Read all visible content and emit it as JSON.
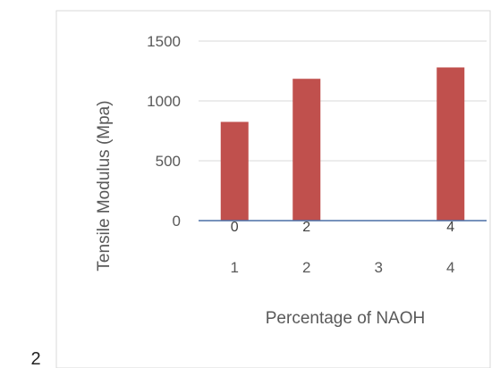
{
  "page_number": "2",
  "chart_data": {
    "type": "bar",
    "title": "",
    "xlabel": "Percentage of NAOH",
    "ylabel": "Tensile Modulus (Mpa)",
    "categories": [
      "1",
      "2",
      "3",
      "4"
    ],
    "series": [
      {
        "values": [
          825,
          1185,
          0,
          1280
        ],
        "color": "#c0504d"
      }
    ],
    "data_labels": [
      "0",
      "2",
      "",
      "4"
    ],
    "yticks": [
      "0",
      "500",
      "1000",
      "1500"
    ],
    "ylim": [
      0,
      1500
    ],
    "grid": true,
    "legend": "none"
  }
}
